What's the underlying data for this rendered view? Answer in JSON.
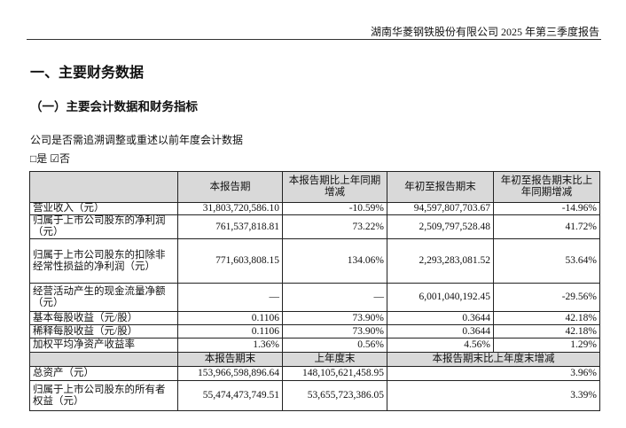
{
  "header": {
    "title": "湖南华菱钢铁股份有限公司 2025 年第三季度报告"
  },
  "section_title": "一、主要财务数据",
  "subsection_title": "（一）主要会计数据和财务指标",
  "question": "公司是否需追溯调整或重述以前年度会计数据",
  "answer": "□是 ☑否",
  "table": {
    "header": [
      "",
      "本报告期",
      "本报告期比上年同期增减",
      "年初至报告期末",
      "年初至报告期末比上年同期增减"
    ],
    "rows": [
      [
        "营业收入（元）",
        "31,803,720,586.10",
        "-10.59%",
        "94,597,807,703.67",
        "-14.96%"
      ],
      [
        "归属于上市公司股东的净利润（元）",
        "761,537,818.81",
        "73.22%",
        "2,509,797,528.48",
        "41.72%"
      ],
      [
        "归属于上市公司股东的扣除非经常性损益的净利润（元）",
        "771,603,808.15",
        "134.06%",
        "2,293,283,081.52",
        "53.64%"
      ],
      [
        "经营活动产生的现金流量净额（元）",
        "—",
        "—",
        "6,001,040,192.45",
        "-29.56%"
      ],
      [
        "基本每股收益（元/股）",
        "0.1106",
        "73.90%",
        "0.3644",
        "42.18%"
      ],
      [
        "稀释每股收益（元/股）",
        "0.1106",
        "73.90%",
        "0.3644",
        "42.18%"
      ],
      [
        "加权平均净资产收益率",
        "1.36%",
        "0.56%",
        "4.56%",
        "1.29%"
      ]
    ],
    "header2": [
      "",
      "本报告期末",
      "上年度末",
      "本报告期末比上年度末增减"
    ],
    "rows2": [
      [
        "总资产（元）",
        "153,966,598,896.64",
        "148,105,621,458.95",
        "3.96%"
      ],
      [
        "归属于上市公司股东的所有者权益（元）",
        "55,474,473,749.51",
        "53,655,723,386.05",
        "3.39%"
      ]
    ]
  }
}
